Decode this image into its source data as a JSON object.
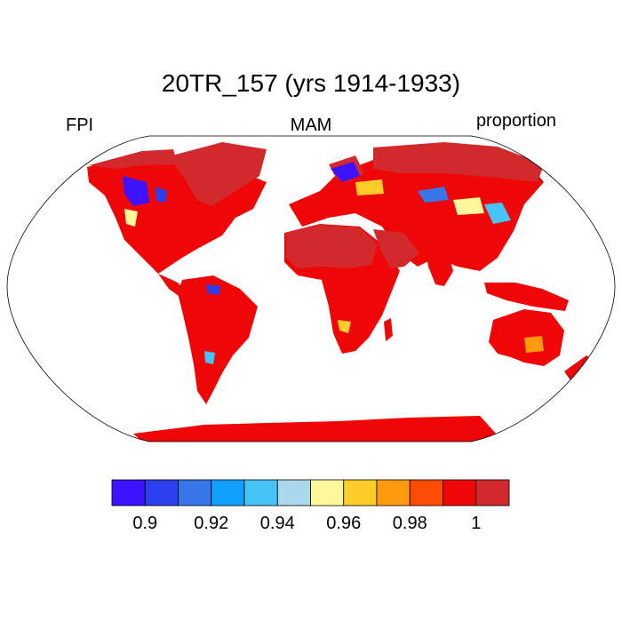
{
  "title": "20TR_157 (yrs 1914-1933)",
  "left_label": "FPI",
  "center_label": "MAM",
  "right_label": "proportion",
  "colorbar": {
    "colors": [
      "#3c12ff",
      "#2a40ef",
      "#3777ea",
      "#129fff",
      "#45c4f5",
      "#aad8ee",
      "#fef89b",
      "#ffcd2a",
      "#ff9a0f",
      "#ff4b05",
      "#ef0606",
      "#d2292d"
    ],
    "tick_labels": [
      "0.9",
      "0.92",
      "0.94",
      "0.96",
      "0.98",
      "1"
    ],
    "tick_values": [
      0.9,
      0.92,
      0.94,
      0.96,
      0.98,
      1.0
    ],
    "range": [
      0.885,
      1.005
    ]
  },
  "map": {
    "projection": "robinson",
    "background_land": "#ef0606",
    "high_latitude_fill": "#d2292d",
    "ocean": "#ffffff"
  }
}
